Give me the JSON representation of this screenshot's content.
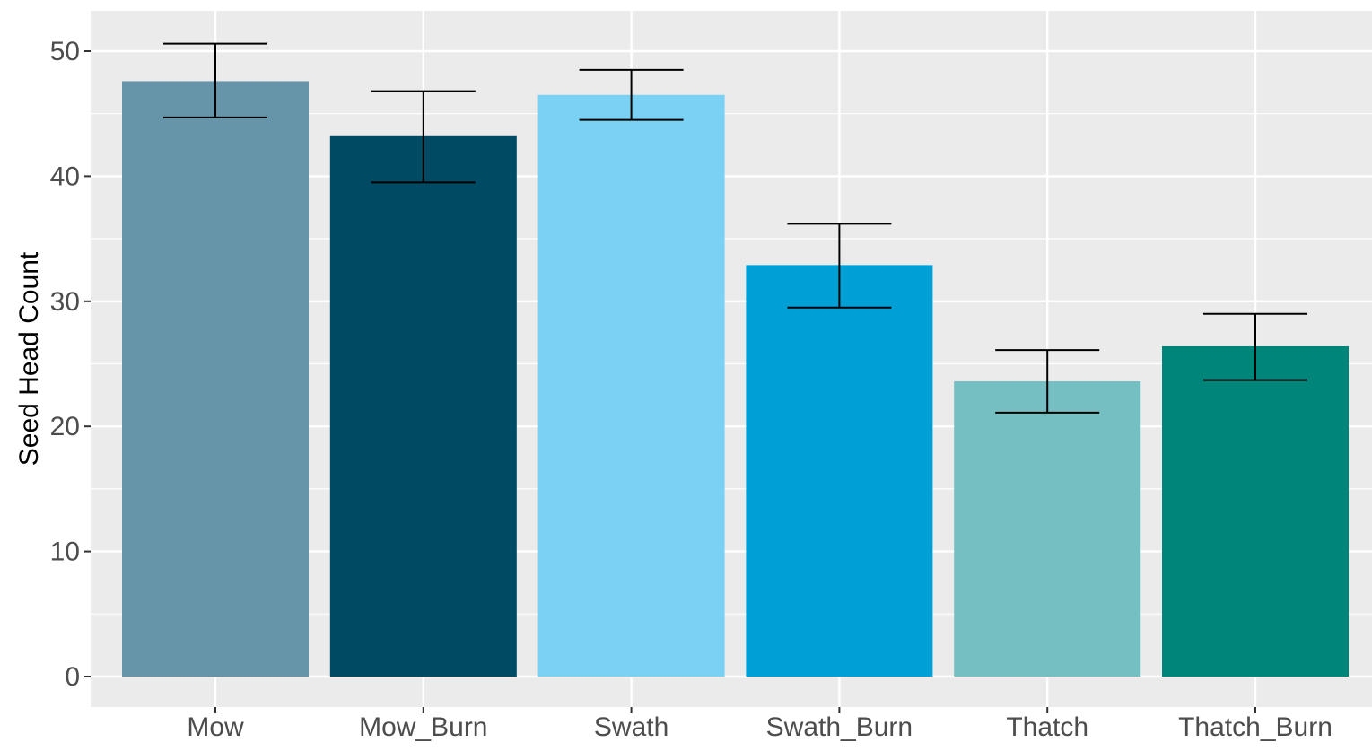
{
  "chart_data": {
    "type": "bar",
    "title": "",
    "xlabel": "",
    "ylabel": "Seed Head Count",
    "categories": [
      "Mow",
      "Mow_Burn",
      "Swath",
      "Swath_Burn",
      "Thatch",
      "Thatch_Burn"
    ],
    "values": [
      47.6,
      43.2,
      46.5,
      32.9,
      23.6,
      26.4
    ],
    "error_low": [
      44.7,
      39.5,
      44.5,
      29.5,
      21.1,
      23.7
    ],
    "error_high": [
      50.6,
      46.8,
      48.5,
      36.2,
      26.1,
      29.0
    ],
    "colors": [
      "#6694a9",
      "#004b63",
      "#7ad1f3",
      "#00a0d7",
      "#75bfc3",
      "#00857b"
    ],
    "ylim": [
      -2.4,
      52.5
    ],
    "yticks": [
      0,
      10,
      20,
      30,
      40,
      50
    ],
    "grid": true,
    "legend": "none",
    "panel_background": "#ebebeb",
    "gridline_color": "#ffffff"
  }
}
